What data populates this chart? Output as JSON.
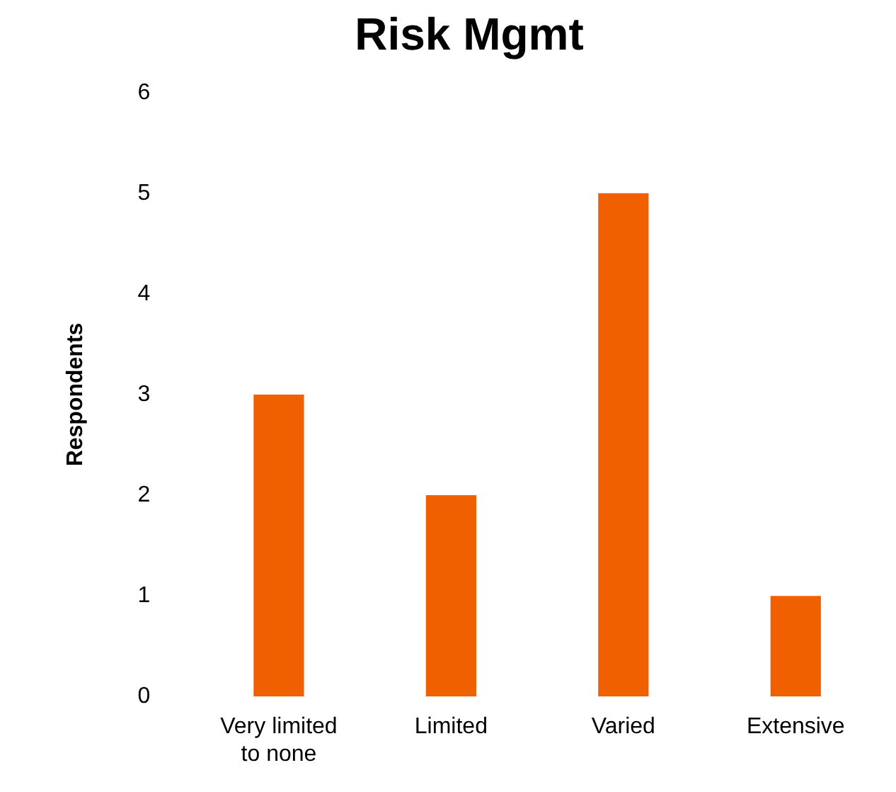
{
  "chart_data": {
    "type": "bar",
    "title": "Risk Mgmt",
    "ylabel": "Respondents",
    "categories": [
      "Very limited to none",
      "Limited",
      "Varied",
      "Extensive"
    ],
    "values": [
      3,
      2,
      5,
      1
    ],
    "color": "#f06000",
    "ylim": [
      0,
      6
    ],
    "yticks": [
      0,
      1,
      2,
      3,
      4,
      5,
      6
    ],
    "grid": false,
    "legend": false
  }
}
